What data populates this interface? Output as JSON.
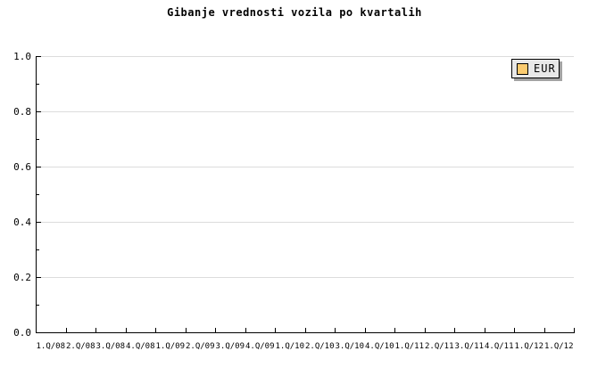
{
  "title": "Gibanje vrednosti vozila po kvartalih",
  "legend": {
    "label": "EUR"
  },
  "y_axis": {
    "tick_labels": [
      "1.0",
      "0.8",
      "0.6",
      "0.4",
      "0.2",
      "0.0"
    ]
  },
  "x_axis": {
    "tick_labels": [
      "1.Q/08",
      "2.Q/08",
      "3.Q/08",
      "4.Q/08",
      "1.Q/09",
      "2.Q/09",
      "3.Q/09",
      "4.Q/09",
      "1.Q/10",
      "2.Q/10",
      "3.Q/10",
      "4.Q/10",
      "1.Q/11",
      "2.Q/11",
      "3.Q/11",
      "4.Q/11",
      "1.Q/12",
      "1.Q/12"
    ]
  },
  "colors": {
    "background": "#FFFFFF",
    "text": "#000000",
    "axis": "#000000",
    "gridline": "#DCDCDC",
    "legend_background": "#E8E8E8",
    "legend_border": "#000000",
    "legend_shadow": "#A3A3A3",
    "legend_swatch": "#FBCB70"
  },
  "chart_data": {
    "type": "line",
    "title": "Gibanje vrednosti vozila po kvartalih",
    "categories": [
      "1.Q/08",
      "2.Q/08",
      "3.Q/08",
      "4.Q/08",
      "1.Q/09",
      "2.Q/09",
      "3.Q/09",
      "4.Q/09",
      "1.Q/10",
      "2.Q/10",
      "3.Q/10",
      "4.Q/10",
      "1.Q/11",
      "2.Q/11",
      "3.Q/11",
      "4.Q/11",
      "1.Q/12",
      "1.Q/12"
    ],
    "series": [
      {
        "name": "EUR",
        "values": []
      }
    ],
    "xlabel": "",
    "ylabel": "",
    "ylim": [
      0.0,
      1.0
    ],
    "y_major_ticks": [
      0.0,
      0.2,
      0.4,
      0.6,
      0.8,
      1.0
    ],
    "y_minor_tick_step": 0.1,
    "grid": "horizontal-only",
    "legend_position": "top-right",
    "plot_empty": true
  }
}
